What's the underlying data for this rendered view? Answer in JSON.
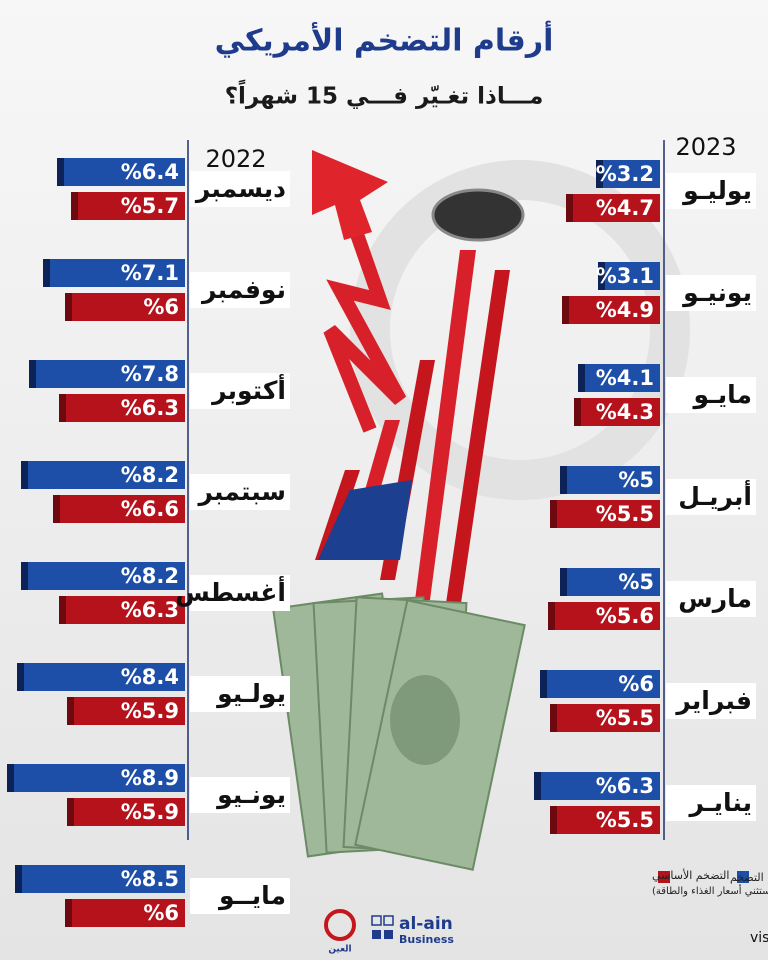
{
  "header": {
    "title": "أرقام التضخم الأمريكي",
    "subtitle": "مـــاذا تغـيّر فـــي 15 شهراً؟"
  },
  "chart_data": [
    {
      "type": "bar",
      "title": "2023",
      "categories": [
        "يوليـو",
        "يونيـو",
        "مايـو",
        "أبريـل",
        "مارس",
        "فبراير",
        "ينايـر"
      ],
      "series": [
        {
          "name": "التضخم",
          "color": "#1e4fa8",
          "values": [
            3.2,
            3.1,
            4.1,
            5,
            5,
            6,
            6.3
          ],
          "value_labels": [
            "%3.2",
            "%3.1",
            "%4.1",
            "%5",
            "%5",
            "%6",
            "%6.3"
          ]
        },
        {
          "name": "التضخم الأساسي",
          "color": "#b5121b",
          "values": [
            4.7,
            4.9,
            4.3,
            5.5,
            5.6,
            5.5,
            5.5
          ],
          "value_labels": [
            "%4.7",
            "%4.9",
            "%4.3",
            "%5.5",
            "%5.6",
            "%5.5",
            "%5.5"
          ]
        }
      ]
    },
    {
      "type": "bar",
      "title": "2022",
      "categories": [
        "ديسمبر",
        "نوفمبر",
        "أكتوبر",
        "سبتمبر",
        "أغسطس",
        "يولـيو",
        "يونـيو",
        "مايــو"
      ],
      "series": [
        {
          "color": "#1e4fa8",
          "values": [
            6.4,
            7.1,
            7.8,
            8.2,
            8.2,
            8.4,
            8.9,
            8.5
          ],
          "value_labels": [
            "%6.4",
            "%7.1",
            "%7.8",
            "%8.2",
            "%8.2",
            "%8.4",
            "%8.9",
            "%8.5"
          ]
        },
        {
          "color": "#b5121b",
          "values": [
            5.7,
            6,
            6.3,
            6.6,
            6.3,
            5.9,
            5.9,
            6
          ],
          "value_labels": [
            "%5.7",
            "%6",
            "%6.3",
            "%6.6",
            "%6.3",
            "%5.9",
            "%5.9",
            "%6"
          ]
        }
      ]
    }
  ],
  "legend_note": "(يستثني أسعار الغذاء والطاقة)",
  "source": "المصدر: visualcapitalist",
  "logo": {
    "name": "al-ain",
    "tagline": "Business",
    "arabic": "العين"
  }
}
